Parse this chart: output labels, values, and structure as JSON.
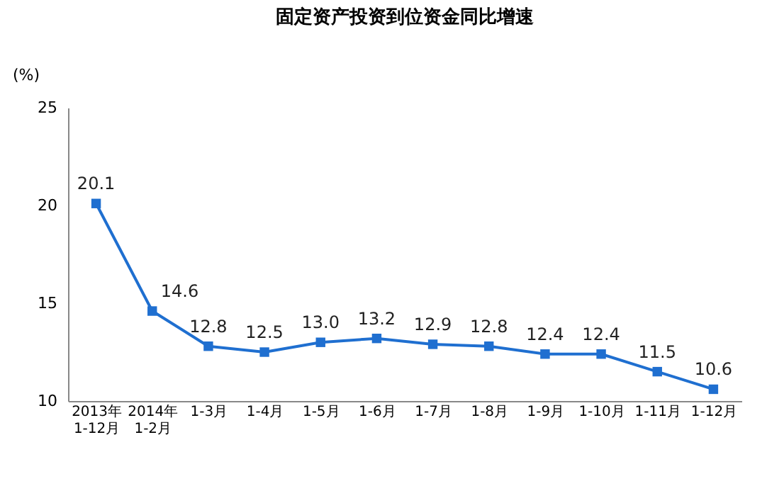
{
  "chart_data": {
    "type": "line",
    "title": "固定资产投资到位资金同比增速",
    "ylabel": "(%)",
    "categories": [
      "2013年\n1-12月",
      "2014年\n1-2月",
      "1-3月",
      "1-4月",
      "1-5月",
      "1-6月",
      "1-7月",
      "1-8月",
      "1-9月",
      "1-10月",
      "1-11月",
      "1-12月"
    ],
    "series": [
      {
        "color": "#1f6fd0",
        "values": [
          20.1,
          14.6,
          12.8,
          12.5,
          13.0,
          13.2,
          12.9,
          12.8,
          12.4,
          12.4,
          11.5,
          10.6
        ],
        "value_labels": [
          "20.1",
          "14.6",
          "12.8",
          "12.5",
          "13.0",
          "13.2",
          "12.9",
          "12.8",
          "12.4",
          "12.4",
          "11.5",
          "10.6"
        ]
      }
    ],
    "ylim": [
      10,
      25
    ],
    "yticks": [
      10,
      15,
      20,
      25
    ],
    "marker": "square",
    "line_style": "solid"
  }
}
